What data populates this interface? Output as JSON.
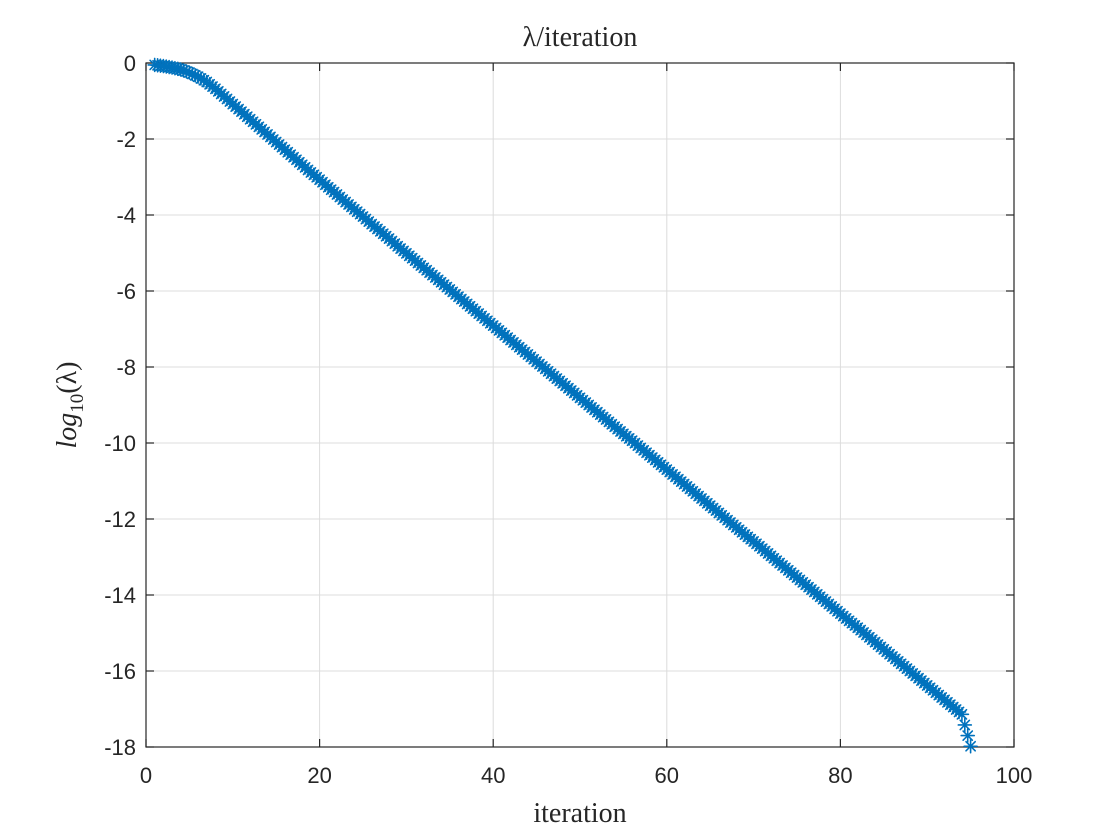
{
  "chart_data": {
    "type": "scatter",
    "title": "λ/iteration",
    "xlabel": "iteration",
    "ylabel": "log₁₀(λ)",
    "ylabel_parts": {
      "base": "log",
      "sub": "10",
      "arg": "(λ)"
    },
    "xlim": [
      0,
      100
    ],
    "ylim": [
      -18,
      0
    ],
    "xticks": [
      0,
      20,
      40,
      60,
      80,
      100
    ],
    "yticks": [
      0,
      -2,
      -4,
      -6,
      -8,
      -10,
      -12,
      -14,
      -16,
      -18
    ],
    "grid": true,
    "marker": "asterisk",
    "color": "#0072BD",
    "series": [
      {
        "x": [
          1,
          2,
          3,
          4,
          5,
          6,
          7,
          8,
          9,
          10,
          11,
          12,
          13,
          14,
          15,
          16,
          17,
          18,
          19,
          20,
          21,
          22,
          23,
          24,
          25,
          26,
          27,
          28,
          29,
          30,
          31,
          32,
          33,
          34,
          35,
          36,
          37,
          38,
          39,
          40,
          41,
          42,
          43,
          44,
          45,
          46,
          47,
          48,
          49,
          50,
          51,
          52,
          53,
          54,
          55,
          56,
          57,
          58,
          59,
          60,
          61,
          62,
          63,
          64,
          65,
          66,
          67,
          68,
          69,
          70,
          71,
          72,
          73,
          74,
          75,
          76,
          77,
          78,
          79,
          80,
          81,
          82,
          83,
          84,
          85,
          86,
          87,
          88,
          89,
          90,
          91,
          92,
          93,
          94,
          95
        ],
        "y": [
          -0.05,
          -0.08,
          -0.12,
          -0.17,
          -0.25,
          -0.36,
          -0.5,
          -0.68,
          -0.88,
          -1.08,
          -1.28,
          -1.48,
          -1.68,
          -1.88,
          -2.08,
          -2.28,
          -2.48,
          -2.68,
          -2.88,
          -3.07,
          -3.27,
          -3.46,
          -3.66,
          -3.85,
          -4.04,
          -4.24,
          -4.43,
          -4.62,
          -4.82,
          -5.01,
          -5.2,
          -5.39,
          -5.58,
          -5.77,
          -5.96,
          -6.15,
          -6.34,
          -6.53,
          -6.72,
          -6.91,
          -7.1,
          -7.29,
          -7.48,
          -7.67,
          -7.86,
          -8.05,
          -8.24,
          -8.43,
          -8.62,
          -8.81,
          -9.0,
          -9.19,
          -9.38,
          -9.57,
          -9.76,
          -9.94,
          -10.13,
          -10.32,
          -10.51,
          -10.7,
          -10.89,
          -11.08,
          -11.27,
          -11.46,
          -11.65,
          -11.84,
          -12.03,
          -12.22,
          -12.41,
          -12.59,
          -12.78,
          -12.97,
          -13.16,
          -13.35,
          -13.54,
          -13.73,
          -13.92,
          -14.11,
          -14.3,
          -14.49,
          -14.68,
          -14.86,
          -15.05,
          -15.24,
          -15.43,
          -15.62,
          -15.81,
          -16.0,
          -16.19,
          -16.38,
          -16.57,
          -16.76,
          -16.95,
          -17.14,
          -17.98
        ]
      }
    ]
  }
}
